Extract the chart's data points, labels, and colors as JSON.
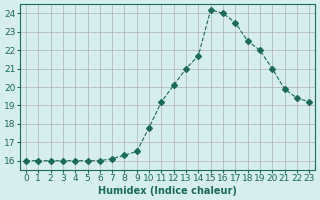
{
  "x": [
    0,
    1,
    2,
    3,
    4,
    5,
    6,
    7,
    8,
    9,
    10,
    11,
    12,
    13,
    14,
    15,
    16,
    17,
    18,
    19,
    20,
    21,
    22,
    23
  ],
  "y": [
    16.0,
    16.0,
    16.0,
    16.0,
    16.0,
    16.0,
    16.0,
    16.1,
    16.3,
    16.5,
    17.8,
    19.2,
    20.1,
    21.0,
    21.7,
    24.2,
    24.0,
    23.5,
    22.5,
    22.0,
    21.0,
    19.9,
    19.4,
    19.2
  ],
  "line_color": "#1a6b5a",
  "marker": "D",
  "marker_size": 3,
  "bg_color": "#d6eeee",
  "grid_color": "#b0b0b0",
  "xlabel": "Humidex (Indice chaleur)",
  "xlim": [
    -0.5,
    23.5
  ],
  "ylim": [
    15.5,
    24.5
  ],
  "yticks": [
    16,
    17,
    18,
    19,
    20,
    21,
    22,
    23,
    24
  ],
  "xticks": [
    0,
    1,
    2,
    3,
    4,
    5,
    6,
    7,
    8,
    9,
    10,
    11,
    12,
    13,
    14,
    15,
    16,
    17,
    18,
    19,
    20,
    21,
    22,
    23
  ],
  "xlabel_fontsize": 7,
  "tick_fontsize": 6.5,
  "linewidth": 0.8
}
